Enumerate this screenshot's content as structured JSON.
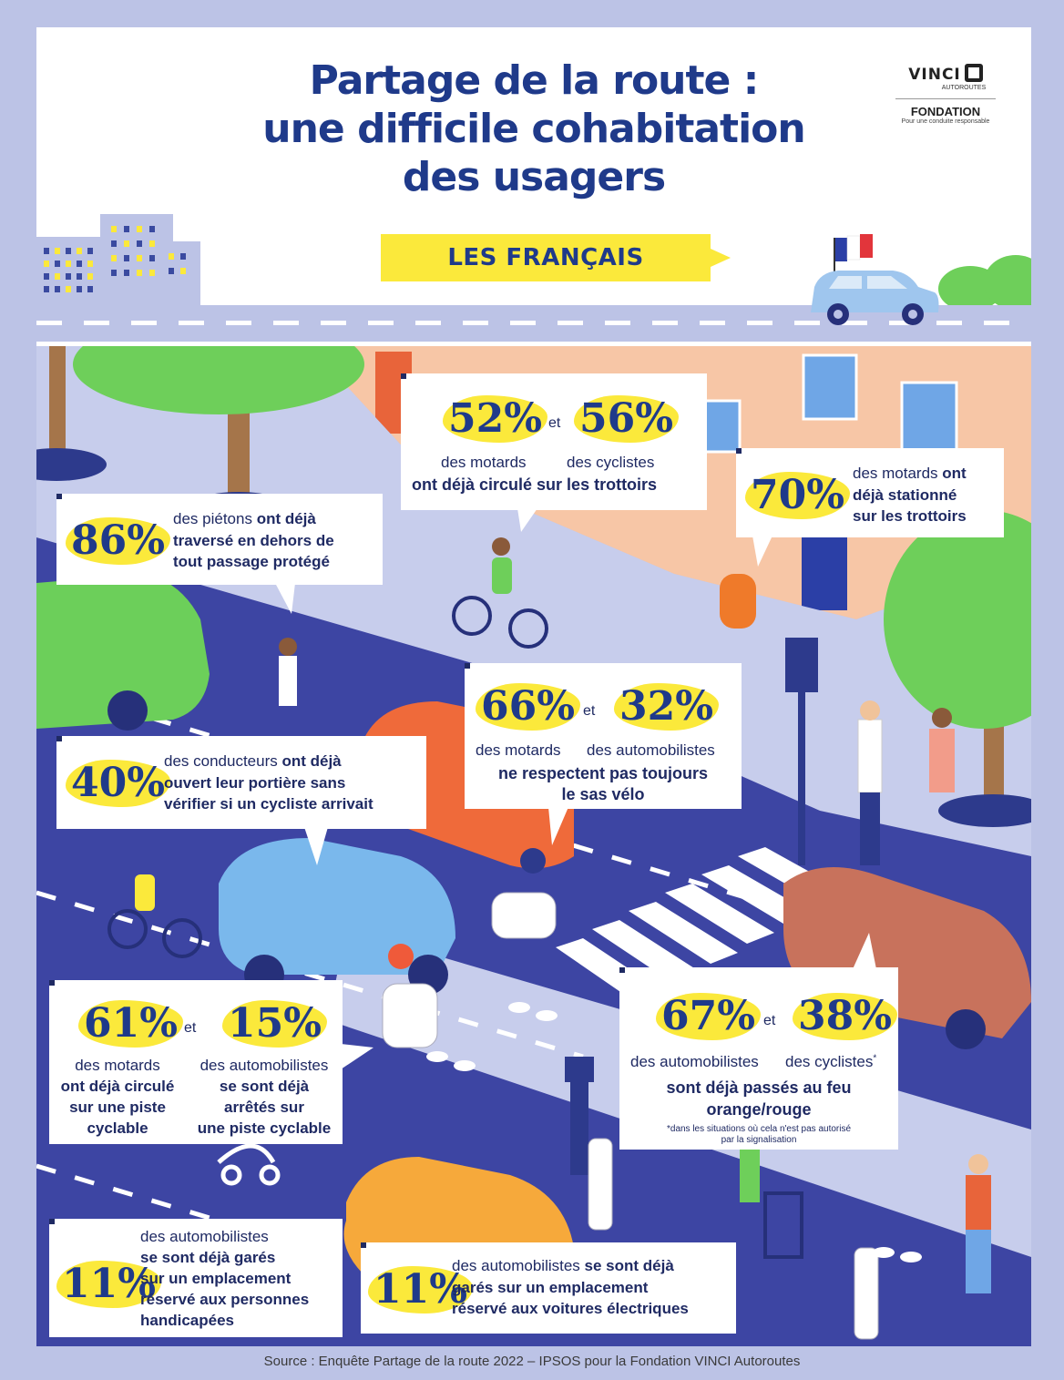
{
  "header": {
    "title_lines": [
      "Partage de la route :",
      "une difficile cohabitation",
      "des usagers"
    ],
    "badge": "LES FRANÇAIS",
    "logo": {
      "brand": "VINCI",
      "sub": "AUTOROUTES",
      "foundation": "FONDATION",
      "tagline": "Pour une conduite responsable"
    }
  },
  "stats": {
    "moto_cyclist_sidewalk": {
      "a_pct": "52%",
      "a_label": "des motards",
      "et": "et",
      "b_pct": "56%",
      "b_label": "des cyclistes",
      "text": "ont déjà circulé sur les trottoirs"
    },
    "moto_parked_sidewalk": {
      "pct": "70%",
      "text_normal": "des motards ",
      "text_bold_1": "ont",
      "text_bold_2": "déjà stationné",
      "text_bold_3": "sur les trottoirs"
    },
    "pedestrians": {
      "pct": "86%",
      "text_normal": "des piétons ",
      "text_bold_1": "ont déjà",
      "text_bold_2": "traversé en dehors de",
      "text_bold_3": "tout passage protégé"
    },
    "bike_box": {
      "a_pct": "66%",
      "a_label": "des motards",
      "et": "et",
      "b_pct": "32%",
      "b_label": "des automobilistes",
      "text_1": "ne respectent pas toujours",
      "text_2": "le sas vélo"
    },
    "doors": {
      "pct": "40%",
      "text_normal": "des conducteurs ",
      "text_bold_1": "ont déjà",
      "text_bold_2": "ouvert leur portière sans",
      "text_bold_3": "vérifier si un cycliste arrivait"
    },
    "bike_lane": {
      "a_pct": "61%",
      "a_label": "des motards",
      "a_text_1": "ont déjà circulé",
      "a_text_2": "sur une piste",
      "a_text_3": "cyclable",
      "et": "et",
      "b_pct": "15%",
      "b_label": "des automobilistes",
      "b_text_1": "se sont déjà",
      "b_text_2": "arrêtés sur",
      "b_text_3": "une piste cyclable"
    },
    "red_light": {
      "a_pct": "67%",
      "a_label": "des automobilistes",
      "et": "et",
      "b_pct": "38%",
      "b_label": "des cyclistes",
      "b_mark": "*",
      "text_1": "sont déjà passés au feu",
      "text_2": "orange/rouge",
      "note_1": "*dans les situations où cela n'est pas autorisé",
      "note_2": "par la signalisation"
    },
    "handicap": {
      "pct": "11%",
      "text_normal": "des automobilistes",
      "text_bold_1": "se sont déjà garés",
      "text_bold_2": "sur un emplacement",
      "text_bold_3": "réservé aux personnes",
      "text_bold_4": "handicapées"
    },
    "electric": {
      "pct": "11%",
      "text_normal": "des automobilistes ",
      "text_bold_1": "se sont déjà",
      "text_bold_2": "garés sur un emplacement",
      "text_bold_3": "réservé aux voitures électriques"
    }
  },
  "footer": {
    "source": "Source : Enquête Partage de la route 2022 – IPSOS pour la Fondation VINCI Autoroutes"
  },
  "colors": {
    "navy": "#1f3a8a",
    "yellow": "#fbe93b",
    "lavender": "#bcc3e6",
    "road": "#3d45a3"
  }
}
